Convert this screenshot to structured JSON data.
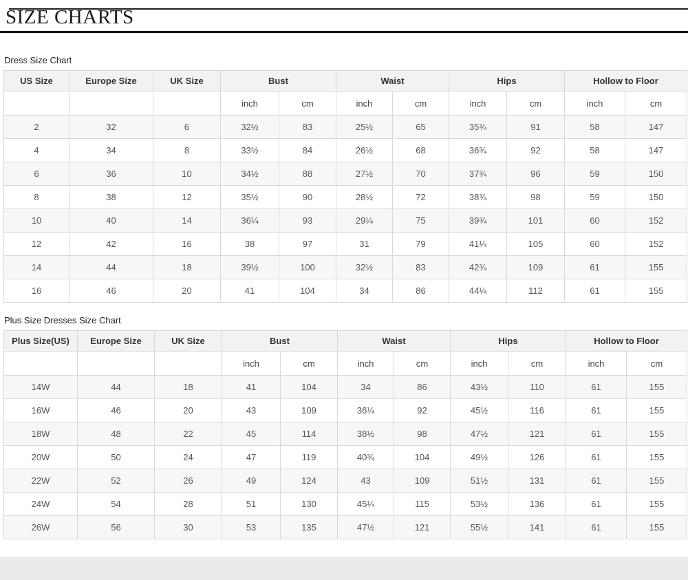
{
  "page": {
    "title": "SIZE CHARTS"
  },
  "colors": {
    "header_bg": "#f2f2f2",
    "table_border": "#d9d9d9",
    "alt_row_bg": "#f7f7f7",
    "title_rule": "#141414",
    "footer_strip": "#ebebeb"
  },
  "tables": [
    {
      "title": "Dress Size Chart",
      "columns": [
        "US Size",
        "Europe Size",
        "UK Size"
      ],
      "groups": [
        "Bust",
        "Waist",
        "Hips",
        "Hollow to Floor"
      ],
      "units": [
        "inch",
        "cm"
      ],
      "rows": [
        [
          "2",
          "32",
          "6",
          "32½",
          "83",
          "25½",
          "65",
          "35¾",
          "91",
          "58",
          "147"
        ],
        [
          "4",
          "34",
          "8",
          "33½",
          "84",
          "26½",
          "68",
          "36¾",
          "92",
          "58",
          "147"
        ],
        [
          "6",
          "36",
          "10",
          "34½",
          "88",
          "27½",
          "70",
          "37¾",
          "96",
          "59",
          "150"
        ],
        [
          "8",
          "38",
          "12",
          "35½",
          "90",
          "28½",
          "72",
          "38¾",
          "98",
          "59",
          "150"
        ],
        [
          "10",
          "40",
          "14",
          "36¼",
          "93",
          "29¼",
          "75",
          "39¾",
          "101",
          "60",
          "152"
        ],
        [
          "12",
          "42",
          "16",
          "38",
          "97",
          "31",
          "79",
          "41¼",
          "105",
          "60",
          "152"
        ],
        [
          "14",
          "44",
          "18",
          "39½",
          "100",
          "32½",
          "83",
          "42¾",
          "109",
          "61",
          "155"
        ],
        [
          "16",
          "46",
          "20",
          "41",
          "104",
          "34",
          "86",
          "44¼",
          "112",
          "61",
          "155"
        ]
      ]
    },
    {
      "title": "Plus Size Dresses Size Chart",
      "columns": [
        "Plus Size(US)",
        "Europe Size",
        "UK Size"
      ],
      "groups": [
        "Bust",
        "Waist",
        "Hips",
        "Hollow to Floor"
      ],
      "units": [
        "inch",
        "cm"
      ],
      "rows": [
        [
          "14W",
          "44",
          "18",
          "41",
          "104",
          "34",
          "86",
          "43½",
          "110",
          "61",
          "155"
        ],
        [
          "16W",
          "46",
          "20",
          "43",
          "109",
          "36¼",
          "92",
          "45½",
          "116",
          "61",
          "155"
        ],
        [
          "18W",
          "48",
          "22",
          "45",
          "114",
          "38½",
          "98",
          "47½",
          "121",
          "61",
          "155"
        ],
        [
          "20W",
          "50",
          "24",
          "47",
          "119",
          "40¾",
          "104",
          "49½",
          "126",
          "61",
          "155"
        ],
        [
          "22W",
          "52",
          "26",
          "49",
          "124",
          "43",
          "109",
          "51½",
          "131",
          "61",
          "155"
        ],
        [
          "24W",
          "54",
          "28",
          "51",
          "130",
          "45¼",
          "115",
          "53½",
          "136",
          "61",
          "155"
        ],
        [
          "26W",
          "56",
          "30",
          "53",
          "135",
          "47½",
          "121",
          "55½",
          "141",
          "61",
          "155"
        ]
      ]
    }
  ]
}
